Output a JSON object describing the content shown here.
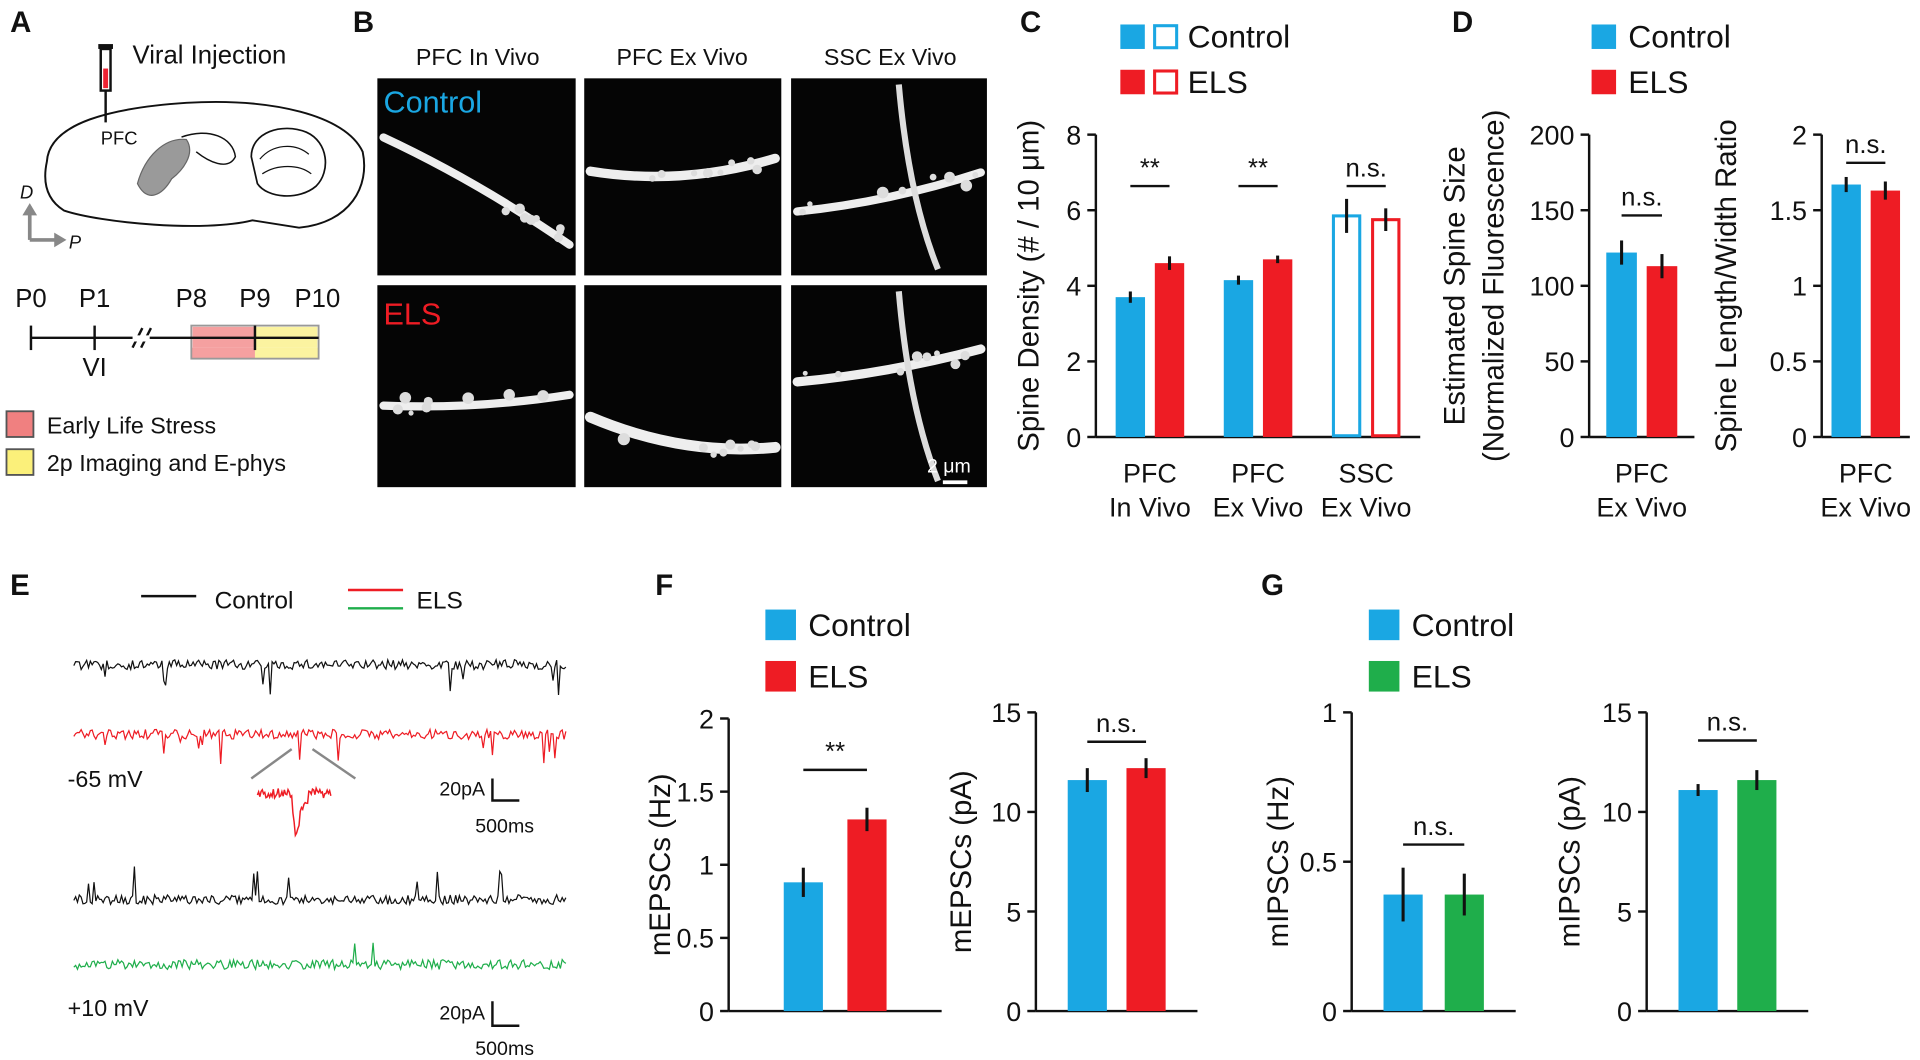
{
  "panel_labels": [
    "A",
    "B",
    "C",
    "D",
    "E",
    "F",
    "G"
  ],
  "panel_a": {
    "injection": "Viral Injection",
    "region": "PFC",
    "axis_dorsal": "D",
    "axis_posterior": "P",
    "timeline": [
      "P0",
      "P1",
      "P8",
      "P9",
      "P10"
    ],
    "injection_day": "VI",
    "legend": [
      "Early Life Stress",
      "2p Imaging and E-phys"
    ]
  },
  "panel_b": {
    "columns": [
      "PFC In Vivo",
      "PFC Ex Vivo",
      "SSC Ex Vivo"
    ],
    "rows": [
      "Control",
      "ELS"
    ],
    "scale_bar": "2 μm"
  },
  "panel_e": {
    "legend": [
      "Control",
      "ELS"
    ],
    "traces": [
      {
        "holding": "-65 mV",
        "scale_y": "20pA",
        "scale_x": "500ms"
      },
      {
        "holding": "+10 mV",
        "scale_y": "20pA",
        "scale_x": "500ms"
      }
    ]
  },
  "chart_data": [
    {
      "type": "bar",
      "ylabel": [
        "Spine Density (# / 10 μm)"
      ],
      "categories": [
        [
          "PFC",
          "In Vivo"
        ],
        [
          "PFC",
          "Ex Vivo"
        ],
        [
          "SSC",
          "Ex Vivo"
        ]
      ],
      "fill_style": [
        "filled",
        "filled",
        "outline"
      ],
      "legend": true,
      "series": [
        {
          "name": "Control",
          "color": "#1aa7e3",
          "values": [
            3.7,
            4.15,
            5.85
          ],
          "errors": [
            0.15,
            0.12,
            0.45
          ]
        },
        {
          "name": "ELS",
          "color": "#ee1c24",
          "values": [
            4.6,
            4.7,
            5.75
          ],
          "errors": [
            0.18,
            0.1,
            0.3
          ]
        }
      ],
      "ylim": [
        0,
        8
      ],
      "yticks": [
        0,
        2,
        4,
        6,
        8
      ],
      "annotations": [
        "**",
        "**",
        "n.s."
      ]
    },
    {
      "type": "bar",
      "ylabel": [
        "Estimated Spine Size",
        "(Normalized Fluorescence)"
      ],
      "categories": [
        [
          "PFC",
          "Ex Vivo"
        ]
      ],
      "legend": true,
      "series": [
        {
          "name": "Control",
          "color": "#1aa7e3",
          "values": [
            122
          ],
          "errors": [
            8
          ]
        },
        {
          "name": "ELS",
          "color": "#ee1c24",
          "values": [
            113
          ],
          "errors": [
            8
          ]
        }
      ],
      "ylim": [
        0,
        200
      ],
      "yticks": [
        0,
        50,
        100,
        150,
        200
      ],
      "annotations": [
        "n.s."
      ]
    },
    {
      "type": "bar",
      "ylabel": [
        "Spine Length/Width Ratio"
      ],
      "categories": [
        [
          "PFC",
          "Ex Vivo"
        ]
      ],
      "legend": false,
      "series": [
        {
          "color": "#1aa7e3",
          "values": [
            1.67
          ],
          "errors": [
            0.05
          ]
        },
        {
          "color": "#ee1c24",
          "values": [
            1.63
          ],
          "errors": [
            0.06
          ]
        }
      ],
      "ylim": [
        0,
        2
      ],
      "yticks": [
        0,
        0.5,
        1,
        1.5,
        2
      ],
      "annotations": [
        "n.s."
      ]
    },
    {
      "type": "bar",
      "ylabel": [
        "mEPSCs (Hz)"
      ],
      "legend": true,
      "series": [
        {
          "name": "Control",
          "color": "#1aa7e3",
          "values": [
            0.88
          ],
          "errors": [
            0.1
          ]
        },
        {
          "name": "ELS",
          "color": "#ee1c24",
          "values": [
            1.31
          ],
          "errors": [
            0.08
          ]
        }
      ],
      "ylim": [
        0,
        2
      ],
      "yticks": [
        0,
        0.5,
        1,
        1.5,
        2
      ],
      "annotations": [
        "**"
      ]
    },
    {
      "type": "bar",
      "ylabel": [
        "mEPSCs (pA)"
      ],
      "legend": false,
      "series": [
        {
          "color": "#1aa7e3",
          "values": [
            11.6
          ],
          "errors": [
            0.6
          ]
        },
        {
          "color": "#ee1c24",
          "values": [
            12.2
          ],
          "errors": [
            0.5
          ]
        }
      ],
      "ylim": [
        0,
        15
      ],
      "yticks": [
        0,
        5,
        10,
        15
      ],
      "annotations": [
        "n.s."
      ]
    },
    {
      "type": "bar",
      "ylabel": [
        "mIPSCs (Hz)"
      ],
      "legend": true,
      "series": [
        {
          "name": "Control",
          "color": "#1aa7e3",
          "values": [
            0.39
          ],
          "errors": [
            0.09
          ]
        },
        {
          "name": "ELS",
          "color": "#1fae4b",
          "values": [
            0.39
          ],
          "errors": [
            0.07
          ]
        }
      ],
      "ylim": [
        0,
        1
      ],
      "yticks": [
        0,
        0.5,
        1
      ],
      "annotations": [
        "n.s."
      ]
    },
    {
      "type": "bar",
      "ylabel": [
        "mIPSCs (pA)"
      ],
      "legend": false,
      "series": [
        {
          "color": "#1aa7e3",
          "values": [
            11.1
          ],
          "errors": [
            0.3
          ]
        },
        {
          "color": "#1fae4b",
          "values": [
            11.6
          ],
          "errors": [
            0.5
          ]
        }
      ],
      "ylim": [
        0,
        15
      ],
      "yticks": [
        0,
        5,
        10,
        15
      ],
      "annotations": [
        "n.s."
      ]
    }
  ]
}
